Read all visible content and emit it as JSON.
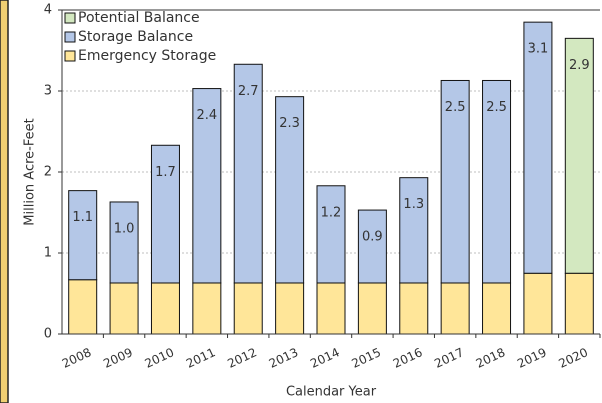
{
  "chart_data": {
    "type": "stacked-bar",
    "x_label": "Calendar Year",
    "y_label": "Million Acre-Feet",
    "categories": [
      "2008",
      "2009",
      "2010",
      "2011",
      "2012",
      "2013",
      "2014",
      "2015",
      "2016",
      "2017",
      "2018",
      "2019",
      "2020"
    ],
    "series": [
      {
        "name": "Emergency Storage",
        "color": "#ffe699",
        "values": [
          0.67,
          0.63,
          0.63,
          0.63,
          0.63,
          0.63,
          0.63,
          0.63,
          0.63,
          0.63,
          0.63,
          0.75,
          0.75
        ]
      },
      {
        "name": "Storage Balance",
        "color": "#b4c7e7",
        "values": [
          1.1,
          1.0,
          1.7,
          2.4,
          2.7,
          2.3,
          1.2,
          0.9,
          1.3,
          2.5,
          2.5,
          3.1,
          null
        ],
        "value_labels": [
          "1.1",
          "1.0",
          "1.7",
          "2.4",
          "2.7",
          "2.3",
          "1.2",
          "0.9",
          "1.3",
          "2.5",
          "2.5",
          "3.1",
          null
        ]
      },
      {
        "name": "Potential Balance",
        "color": "#d3e8c0",
        "values": [
          null,
          null,
          null,
          null,
          null,
          null,
          null,
          null,
          null,
          null,
          null,
          null,
          2.9
        ]
      }
    ],
    "ylim": [
      0,
      4
    ],
    "yticks": [
      0,
      1,
      2,
      3,
      4
    ],
    "grid": true,
    "legend": "top-left"
  }
}
